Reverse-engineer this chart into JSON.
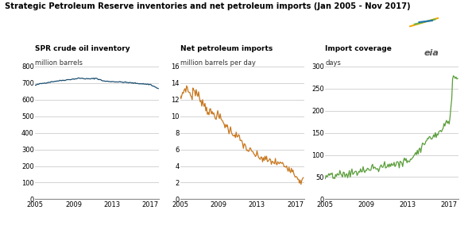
{
  "title": "Strategic Petroleum Reserve inventories and net petroleum imports (Jan 2005 - Nov 2017)",
  "subtitle1": "SPR crude oil inventory",
  "unit1": "million barrels",
  "subtitle2": "Net petroleum imports",
  "unit2": "million barrels per day",
  "subtitle3": "Import coverage",
  "unit3": "days",
  "color1": "#1b4f72",
  "color2": "#c87820",
  "color3": "#5a9e3a",
  "bg_color": "#ffffff",
  "grid_color": "#cccccc",
  "title_color": "#000000",
  "ylim1": [
    0,
    800
  ],
  "ylim2": [
    0,
    16
  ],
  "ylim3": [
    0,
    300
  ],
  "yticks1": [
    0,
    100,
    200,
    300,
    400,
    500,
    600,
    700,
    800
  ],
  "yticks2": [
    0,
    2,
    4,
    6,
    8,
    10,
    12,
    14,
    16
  ],
  "yticks3": [
    0,
    50,
    100,
    150,
    200,
    250,
    300
  ],
  "xticks_years": [
    2005,
    2009,
    2013,
    2017
  ]
}
